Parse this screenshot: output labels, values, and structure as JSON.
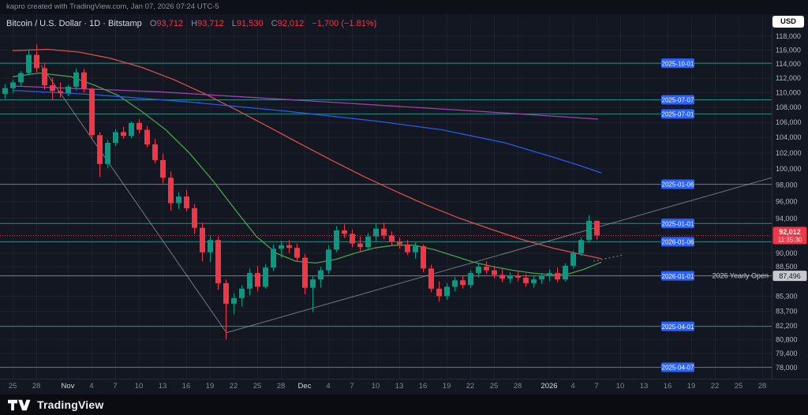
{
  "attribution": "kapro created with TradingView.com, Jan 07, 2026 07:24 UTC-5",
  "header": {
    "title": "Bitcoin / U.S. Dollar · 1D · Bitstamp",
    "o_label": "O",
    "o": "93,712",
    "h_label": "H",
    "h": "93,712",
    "l_label": "L",
    "l": "91,530",
    "c_label": "C",
    "c": "92,012",
    "change": "−1,700 (−1.81%)"
  },
  "controls": {
    "currency": "USD"
  },
  "footer": {
    "brand": "TradingView"
  },
  "colors": {
    "bg": "#131722",
    "up": "#089981",
    "down": "#f23645",
    "badge_blue": "#2962ff",
    "axis_text": "#b2b5be",
    "level_teal": "#2f9e8f",
    "neutral_gray": "#8f939e"
  },
  "price_scale": {
    "values": [
      118000,
      116000,
      114000,
      112000,
      110000,
      108000,
      106000,
      104000,
      102000,
      100000,
      98000,
      96000,
      94000,
      90000,
      88500,
      85300,
      83700,
      82200,
      80800,
      79400,
      78000
    ]
  },
  "time_scale": {
    "ticks": [
      {
        "i": 1,
        "label": "25",
        "major": false
      },
      {
        "i": 4,
        "label": "28",
        "major": false
      },
      {
        "i": 8,
        "label": "Nov",
        "major": true
      },
      {
        "i": 11,
        "label": "4",
        "major": false
      },
      {
        "i": 14,
        "label": "7",
        "major": false
      },
      {
        "i": 17,
        "label": "10",
        "major": false
      },
      {
        "i": 20,
        "label": "13",
        "major": false
      },
      {
        "i": 23,
        "label": "16",
        "major": false
      },
      {
        "i": 26,
        "label": "19",
        "major": false
      },
      {
        "i": 29,
        "label": "22",
        "major": false
      },
      {
        "i": 32,
        "label": "25",
        "major": false
      },
      {
        "i": 35,
        "label": "28",
        "major": false
      },
      {
        "i": 38,
        "label": "Dec",
        "major": true
      },
      {
        "i": 41,
        "label": "4",
        "major": false
      },
      {
        "i": 44,
        "label": "7",
        "major": false
      },
      {
        "i": 47,
        "label": "10",
        "major": false
      },
      {
        "i": 50,
        "label": "13",
        "major": false
      },
      {
        "i": 53,
        "label": "16",
        "major": false
      },
      {
        "i": 56,
        "label": "19",
        "major": false
      },
      {
        "i": 59,
        "label": "22",
        "major": false
      },
      {
        "i": 62,
        "label": "25",
        "major": false
      },
      {
        "i": 65,
        "label": "28",
        "major": false
      },
      {
        "i": 69,
        "label": "2026",
        "major": true
      },
      {
        "i": 72,
        "label": "4",
        "major": false
      },
      {
        "i": 75,
        "label": "7",
        "major": false
      },
      {
        "i": 78,
        "label": "10",
        "major": false
      },
      {
        "i": 81,
        "label": "13",
        "major": false
      },
      {
        "i": 84,
        "label": "16",
        "major": false
      },
      {
        "i": 87,
        "label": "19",
        "major": false
      },
      {
        "i": 90,
        "label": "22",
        "major": false
      },
      {
        "i": 93,
        "label": "25",
        "major": false
      },
      {
        "i": 96,
        "label": "28",
        "major": false
      }
    ]
  },
  "chart_data": {
    "type": "candlestick",
    "title": "Bitcoin / U.S. Dollar",
    "interval": "1D",
    "exchange": "Bitstamp",
    "scale": "log",
    "ylim": [
      78000,
      118000
    ],
    "last": {
      "price": 92012,
      "display": "92,012",
      "countdown": "11:35:30",
      "change": "−1,700",
      "change_pct": "−1.81%",
      "direction": "down"
    },
    "yearly_open": {
      "label": "2026 Yearly Open",
      "price": 87496,
      "display": "87,496"
    },
    "columns": [
      "date",
      "open",
      "high",
      "low",
      "close"
    ],
    "candles": [
      [
        "Oct 24",
        109800,
        111200,
        109200,
        110600
      ],
      [
        "Oct 25",
        110600,
        111800,
        109900,
        111400
      ],
      [
        "Oct 26",
        111400,
        113000,
        110800,
        112700
      ],
      [
        "Oct 27",
        112700,
        116000,
        112400,
        115300
      ],
      [
        "Oct 28",
        115300,
        116800,
        112800,
        113400
      ],
      [
        "Oct 29",
        113400,
        114100,
        110400,
        111000
      ],
      [
        "Oct 30",
        111000,
        112100,
        108900,
        110200
      ],
      [
        "Oct 31",
        110200,
        111400,
        109300,
        109900
      ],
      [
        "Nov 1",
        109900,
        111100,
        109500,
        110800
      ],
      [
        "Nov 2",
        110800,
        113400,
        110300,
        112800
      ],
      [
        "Nov 3",
        112800,
        113300,
        110000,
        110500
      ],
      [
        "Nov 4",
        110500,
        110700,
        103800,
        104300
      ],
      [
        "Nov 5",
        104300,
        104700,
        99000,
        100600
      ],
      [
        "Nov 6",
        100600,
        103700,
        100100,
        103300
      ],
      [
        "Nov 7",
        103300,
        105100,
        102900,
        104700
      ],
      [
        "Nov 8",
        104700,
        105400,
        103800,
        104200
      ],
      [
        "Nov 9",
        104200,
        106100,
        103900,
        105900
      ],
      [
        "Nov 10",
        105900,
        106400,
        104500,
        105000
      ],
      [
        "Nov 11",
        105000,
        105500,
        102700,
        103100
      ],
      [
        "Nov 12",
        103100,
        103800,
        100700,
        101100
      ],
      [
        "Nov 13",
        101100,
        101900,
        98200,
        98900
      ],
      [
        "Nov 14",
        98900,
        99700,
        94900,
        95800
      ],
      [
        "Nov 15",
        95800,
        97100,
        95100,
        96600
      ],
      [
        "Nov 16",
        96600,
        97400,
        94800,
        95200
      ],
      [
        "Nov 17",
        95200,
        95700,
        92200,
        92900
      ],
      [
        "Nov 18",
        92900,
        93500,
        89100,
        90100
      ],
      [
        "Nov 19",
        90100,
        92000,
        89000,
        91500
      ],
      [
        "Nov 20",
        91500,
        91900,
        86000,
        86700
      ],
      [
        "Nov 21",
        86700,
        87100,
        80820,
        84500
      ],
      [
        "Nov 22",
        84500,
        85600,
        83400,
        85100
      ],
      [
        "Nov 23",
        85100,
        86500,
        84200,
        86100
      ],
      [
        "Nov 24",
        86100,
        88300,
        85400,
        87800
      ],
      [
        "Nov 25",
        87800,
        88600,
        85800,
        86300
      ],
      [
        "Nov 26",
        86300,
        88800,
        86100,
        88400
      ],
      [
        "Nov 27",
        88400,
        91000,
        88000,
        90500
      ],
      [
        "Nov 28",
        90500,
        91400,
        89500,
        90900
      ],
      [
        "Nov 29",
        90900,
        91500,
        90000,
        90600
      ],
      [
        "Nov 30",
        90600,
        91100,
        89100,
        89500
      ],
      [
        "Dec 1",
        89500,
        89900,
        85500,
        86200
      ],
      [
        "Dec 2",
        86200,
        87500,
        83600,
        87100
      ],
      [
        "Dec 3",
        87100,
        88500,
        86200,
        88100
      ],
      [
        "Dec 4",
        88100,
        90900,
        87700,
        90400
      ],
      [
        "Dec 5",
        90400,
        93100,
        90100,
        92600
      ],
      [
        "Dec 6",
        92600,
        93300,
        91700,
        92200
      ],
      [
        "Dec 7",
        92200,
        92700,
        90700,
        91100
      ],
      [
        "Dec 8",
        91100,
        91900,
        90200,
        90700
      ],
      [
        "Dec 9",
        90700,
        92300,
        90400,
        91900
      ],
      [
        "Dec 10",
        91900,
        93400,
        91300,
        92800
      ],
      [
        "Dec 11",
        92800,
        93500,
        91600,
        92000
      ],
      [
        "Dec 12",
        92000,
        92500,
        90800,
        91300
      ],
      [
        "Dec 13",
        91300,
        91800,
        90500,
        91000
      ],
      [
        "Dec 14",
        91000,
        91500,
        89800,
        90100
      ],
      [
        "Dec 15",
        90100,
        91200,
        89400,
        90800
      ],
      [
        "Dec 16",
        90800,
        91000,
        87900,
        88300
      ],
      [
        "Dec 17",
        88300,
        88700,
        85700,
        86100
      ],
      [
        "Dec 18",
        86100,
        86900,
        84700,
        85300
      ],
      [
        "Dec 19",
        85300,
        86700,
        84900,
        86300
      ],
      [
        "Dec 20",
        86300,
        87400,
        85800,
        87000
      ],
      [
        "Dec 21",
        87000,
        87500,
        86100,
        86500
      ],
      [
        "Dec 22",
        86500,
        88100,
        86200,
        87800
      ],
      [
        "Dec 23",
        87800,
        88900,
        87300,
        88500
      ],
      [
        "Dec 24",
        88500,
        89100,
        87700,
        88100
      ],
      [
        "Dec 25",
        88100,
        88600,
        87200,
        87600
      ],
      [
        "Dec 26",
        87600,
        88200,
        86800,
        87200
      ],
      [
        "Dec 27",
        87200,
        87900,
        86700,
        87500
      ],
      [
        "Dec 28",
        87500,
        88000,
        86900,
        87300
      ],
      [
        "Dec 29",
        87300,
        87700,
        86300,
        86700
      ],
      [
        "Dec 30",
        86700,
        87500,
        86200,
        87100
      ],
      [
        "Dec 31",
        87100,
        87800,
        86600,
        87496
      ],
      [
        "Jan 1",
        87496,
        88200,
        86900,
        87800
      ],
      [
        "Jan 2",
        87800,
        88400,
        86800,
        87100
      ],
      [
        "Jan 3",
        87100,
        88900,
        86900,
        88600
      ],
      [
        "Jan 4",
        88600,
        90300,
        88300,
        90000
      ],
      [
        "Jan 5",
        90000,
        91800,
        89700,
        91500
      ],
      [
        "Jan 6",
        91500,
        94400,
        91200,
        93712
      ],
      [
        "Jan 7",
        93712,
        93712,
        91530,
        92012
      ]
    ],
    "levels": [
      {
        "date": "2025-10-01",
        "price": 114100,
        "color": "#2f9e8f"
      },
      {
        "date": "2025-07-07",
        "price": 109000,
        "color": "#2f9e8f"
      },
      {
        "date": "2025-07-01",
        "price": 107100,
        "color": "#2f9e8f"
      },
      {
        "date": "2025-01-06",
        "price": 98100,
        "color": "#2f9e8f"
      },
      {
        "date": "2025-01-01",
        "price": 93400,
        "color": "#2f9e8f"
      },
      {
        "date": "2026-01-06",
        "price": 91300,
        "color": "#2f9e8f"
      },
      {
        "date": "2026-01-01",
        "price": 87496,
        "color": "#8f939e"
      },
      {
        "date": "2025-04-01",
        "price": 82150,
        "color": "#2f9e8f"
      },
      {
        "date": "2025-04-07",
        "price": 78050,
        "color": "#2f9e8f"
      }
    ],
    "moving_averages": [
      {
        "name": "ma-fast-green",
        "color": "#4caf50",
        "points": [
          [
            16,
            112200
          ],
          [
            50,
            112700
          ],
          [
            90,
            112200
          ],
          [
            120,
            111000
          ],
          [
            150,
            109600
          ],
          [
            180,
            107400
          ],
          [
            210,
            105000
          ],
          [
            240,
            102000
          ],
          [
            270,
            98500
          ],
          [
            300,
            94800
          ],
          [
            325,
            91900
          ],
          [
            350,
            90000
          ],
          [
            375,
            89100
          ],
          [
            400,
            88900
          ],
          [
            425,
            89300
          ],
          [
            450,
            90000
          ],
          [
            475,
            90600
          ],
          [
            500,
            90900
          ],
          [
            525,
            90900
          ],
          [
            550,
            90400
          ],
          [
            575,
            89700
          ],
          [
            600,
            89000
          ],
          [
            625,
            88500
          ],
          [
            650,
            88100
          ],
          [
            675,
            87800
          ],
          [
            700,
            87600
          ],
          [
            720,
            87700
          ],
          [
            740,
            88200
          ],
          [
            762,
            89000
          ]
        ]
      },
      {
        "name": "ma-mid-red",
        "color": "#ef5350",
        "points": [
          [
            16,
            115900
          ],
          [
            60,
            116100
          ],
          [
            100,
            115700
          ],
          [
            140,
            114800
          ],
          [
            180,
            113500
          ],
          [
            220,
            111800
          ],
          [
            260,
            109800
          ],
          [
            300,
            107600
          ],
          [
            340,
            105400
          ],
          [
            380,
            103200
          ],
          [
            420,
            101100
          ],
          [
            460,
            99100
          ],
          [
            500,
            97300
          ],
          [
            540,
            95600
          ],
          [
            580,
            94100
          ],
          [
            620,
            92800
          ],
          [
            660,
            91600
          ],
          [
            700,
            90600
          ],
          [
            735,
            89900
          ],
          [
            762,
            89400
          ]
        ]
      },
      {
        "name": "ma-slow-blue",
        "color": "#2962ff",
        "points": [
          [
            16,
            110300
          ],
          [
            120,
            109700
          ],
          [
            240,
            108700
          ],
          [
            360,
            107500
          ],
          [
            480,
            106100
          ],
          [
            560,
            105000
          ],
          [
            640,
            103300
          ],
          [
            700,
            101500
          ],
          [
            735,
            100400
          ],
          [
            762,
            99500
          ]
        ]
      },
      {
        "name": "ma-long-purple",
        "color": "#ab47bc",
        "points": [
          [
            16,
            110900
          ],
          [
            200,
            110100
          ],
          [
            400,
            108800
          ],
          [
            600,
            107500
          ],
          [
            758,
            106400
          ]
        ]
      }
    ],
    "trendlines": [
      {
        "name": "descending-trendline",
        "color": "#9598a1",
        "points": [
          [
            52,
            113800
          ],
          [
            287,
            81500
          ]
        ],
        "dashed": false
      },
      {
        "name": "ascending-trendline",
        "color": "#9598a1",
        "points": [
          [
            287,
            81500
          ],
          [
            978,
            98900
          ]
        ],
        "dashed": false
      },
      {
        "name": "projection-dashes",
        "color": "#b2b5be",
        "points": [
          [
            752,
            89100
          ],
          [
            790,
            89800
          ]
        ],
        "dashed": true
      }
    ]
  }
}
